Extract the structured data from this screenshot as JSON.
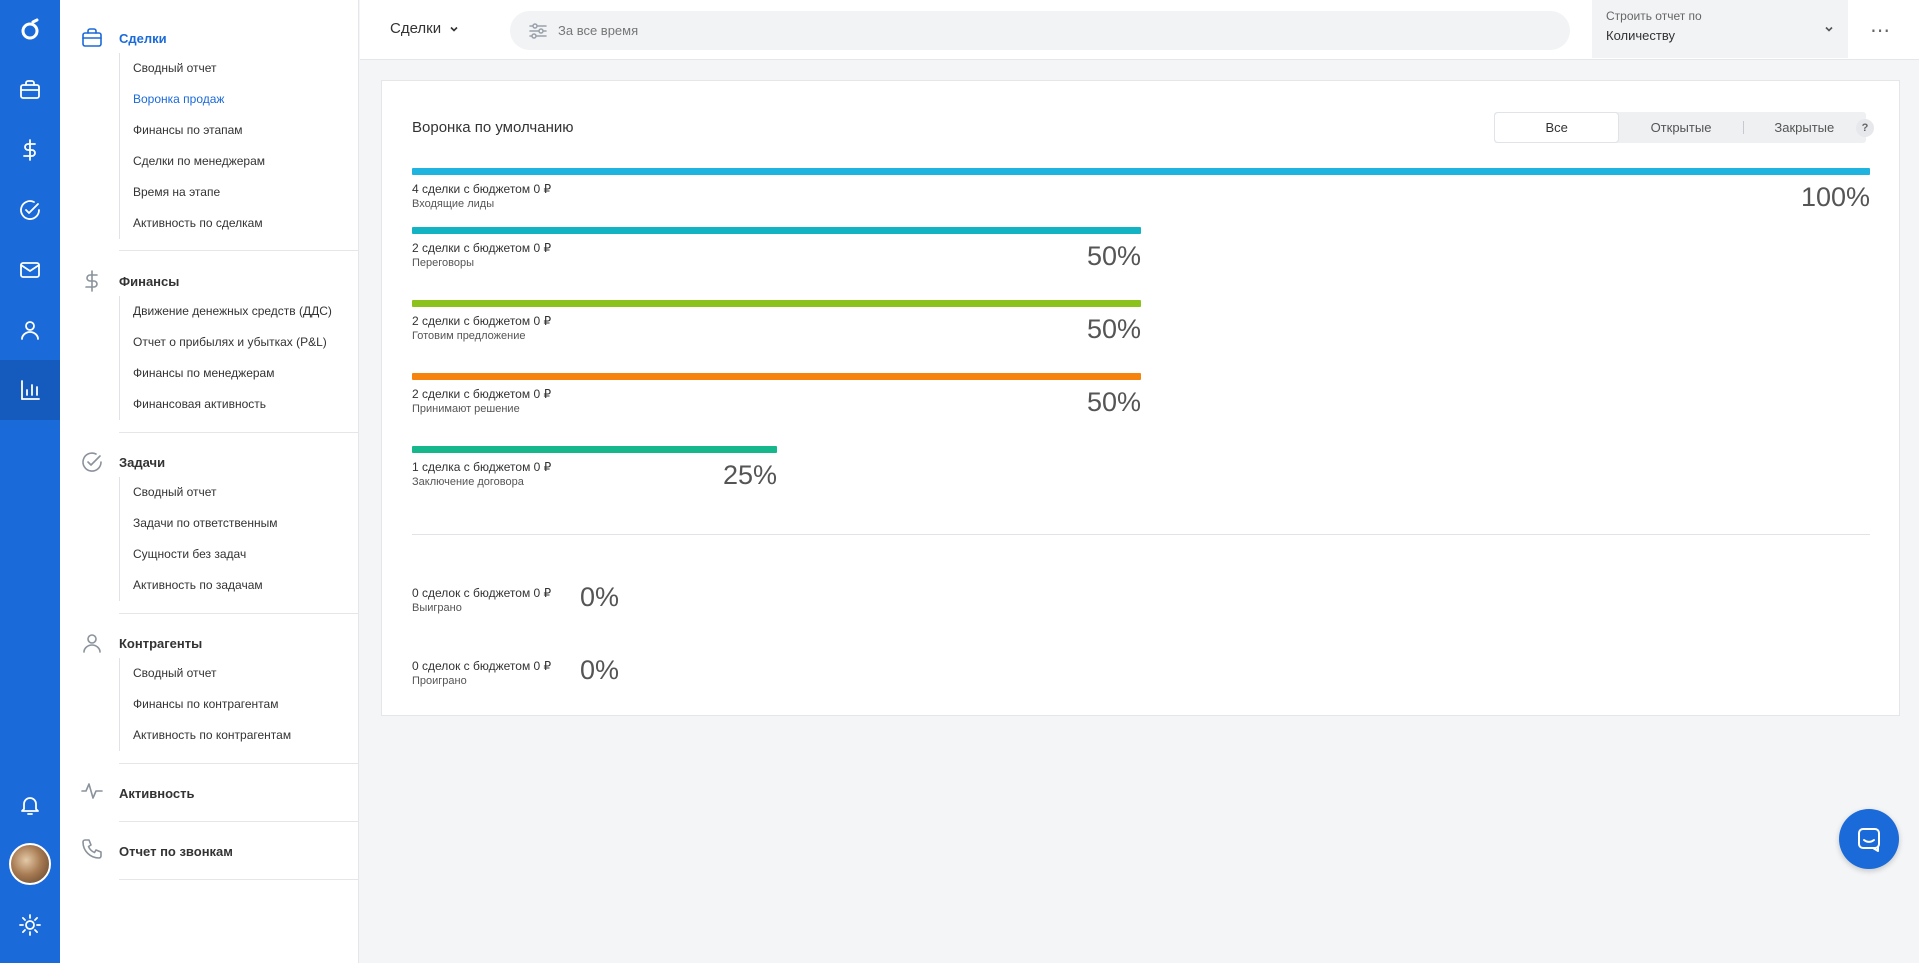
{
  "rail": {
    "items": [
      {
        "name": "logo-icon"
      },
      {
        "name": "briefcase-icon"
      },
      {
        "name": "dollar-icon"
      },
      {
        "name": "check-circle-icon"
      },
      {
        "name": "mail-icon"
      },
      {
        "name": "user-icon"
      },
      {
        "name": "bar-chart-icon",
        "active": true
      }
    ],
    "bottom": [
      "bell-icon",
      "avatar",
      "gear-icon"
    ]
  },
  "sidebar": {
    "sections": [
      {
        "title": "Сделки",
        "icon": "briefcase-icon",
        "active": true,
        "items": [
          "Сводный отчет",
          "Воронка продаж",
          "Финансы по этапам",
          "Сделки по менеджерам",
          "Время на этапе",
          "Активность по сделкам"
        ],
        "active_item": "Воронка продаж"
      },
      {
        "title": "Финансы",
        "icon": "dollar-icon",
        "items": [
          "Движение денежных средств (ДДС)",
          "Отчет о прибылях и убытках (P&L)",
          "Финансы по менеджерам",
          "Финансовая активность"
        ]
      },
      {
        "title": "Задачи",
        "icon": "check-circle-icon",
        "items": [
          "Сводный отчет",
          "Задачи по ответственным",
          "Сущности без задач",
          "Активность по задачам"
        ]
      },
      {
        "title": "Контрагенты",
        "icon": "user-icon",
        "items": [
          "Сводный отчет",
          "Финансы по контрагентам",
          "Активность по контрагентам"
        ]
      },
      {
        "title": "Активность",
        "icon": "activity-icon",
        "items": []
      },
      {
        "title": "Отчет по звонкам",
        "icon": "phone-icon",
        "items": []
      }
    ]
  },
  "topbar": {
    "entity": "Сделки",
    "search_placeholder": "За все время",
    "report_by_label": "Строить отчет по",
    "report_by_value": "Количеству",
    "more": "⋯"
  },
  "funnel": {
    "title": "Воронка по умолчанию",
    "tabs": [
      "Все",
      "Открытые",
      "Закрытые"
    ],
    "active_tab": "Все",
    "help": "?",
    "stages": [
      {
        "summary": "4 сделки с бюджетом 0 ₽",
        "name": "Входящие лиды",
        "pct": "100%",
        "fraction": 1.0,
        "color": "#1fb4e0"
      },
      {
        "summary": "2 сделки с бюджетом 0 ₽",
        "name": "Переговоры",
        "pct": "50%",
        "fraction": 0.5,
        "color": "#13b3c4"
      },
      {
        "summary": "2 сделки с бюджетом 0 ₽",
        "name": "Готовим предложение",
        "pct": "50%",
        "fraction": 0.5,
        "color": "#8bc21c"
      },
      {
        "summary": "2 сделки с бюджетом 0 ₽",
        "name": "Принимают решение",
        "pct": "50%",
        "fraction": 0.5,
        "color": "#f7830f"
      },
      {
        "summary": "1 сделка с бюджетом 0 ₽",
        "name": "Заключение договора",
        "pct": "25%",
        "fraction": 0.25,
        "color": "#16b78b"
      }
    ],
    "results": [
      {
        "summary": "0 сделок с бюджетом 0 ₽",
        "name": "Выиграно",
        "pct": "0%"
      },
      {
        "summary": "0 сделок с бюджетом 0 ₽",
        "name": "Проиграно",
        "pct": "0%"
      }
    ]
  }
}
